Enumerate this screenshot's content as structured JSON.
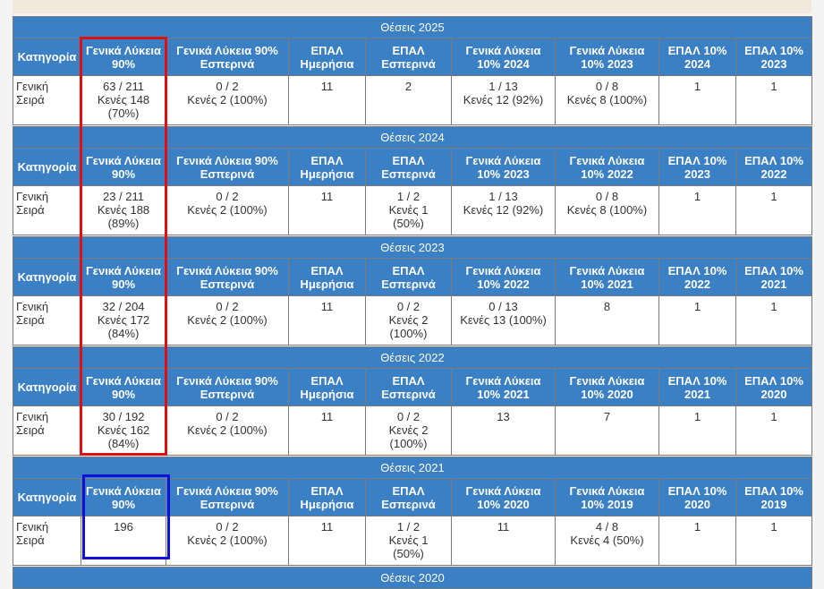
{
  "blocks": [
    {
      "title": "Θέσεις 2025",
      "headers": [
        "Κατηγορία",
        "Γενικά Λύκεια 90%",
        "Γενικά Λύκεια 90% Εσπερινά",
        "ΕΠΑΛ Ημερήσια",
        "ΕΠΑΛ Εσπερινά",
        "Γενικά Λύκεια 10% 2024",
        "Γενικά Λύκεια 10% 2023",
        "ΕΠΑΛ 10% 2024",
        "ΕΠΑΛ 10% 2023"
      ],
      "cells": [
        [
          "Γενική",
          "Σειρά"
        ],
        [
          "63 / 211",
          "Κενές 148",
          "(70%)"
        ],
        [
          "0 / 2",
          "Κενές 2 (100%)"
        ],
        [
          "11"
        ],
        [
          "2"
        ],
        [
          "1 / 13",
          "Κενές 12 (92%)"
        ],
        [
          "0 / 8",
          "Κενές 8 (100%)"
        ],
        [
          "1"
        ],
        [
          "1"
        ]
      ]
    },
    {
      "title": "Θέσεις 2024",
      "headers": [
        "Κατηγορία",
        "Γενικά Λύκεια 90%",
        "Γενικά Λύκεια 90% Εσπερινά",
        "ΕΠΑΛ Ημερήσια",
        "ΕΠΑΛ Εσπερινά",
        "Γενικά Λύκεια 10% 2023",
        "Γενικά Λύκεια 10% 2022",
        "ΕΠΑΛ 10% 2023",
        "ΕΠΑΛ 10% 2022"
      ],
      "cells": [
        [
          "Γενική",
          "Σειρά"
        ],
        [
          "23 / 211",
          "Κενές 188",
          "(89%)"
        ],
        [
          "0 / 2",
          "Κενές 2 (100%)"
        ],
        [
          "11"
        ],
        [
          "1 / 2",
          "Κενές 1",
          "(50%)"
        ],
        [
          "1 / 13",
          "Κενές 12 (92%)"
        ],
        [
          "0 / 8",
          "Κενές 8 (100%)"
        ],
        [
          "1"
        ],
        [
          "1"
        ]
      ]
    },
    {
      "title": "Θέσεις 2023",
      "headers": [
        "Κατηγορία",
        "Γενικά Λύκεια 90%",
        "Γενικά Λύκεια 90% Εσπερινά",
        "ΕΠΑΛ Ημερήσια",
        "ΕΠΑΛ Εσπερινά",
        "Γενικά Λύκεια 10% 2022",
        "Γενικά Λύκεια 10% 2021",
        "ΕΠΑΛ 10% 2022",
        "ΕΠΑΛ 10% 2021"
      ],
      "cells": [
        [
          "Γενική",
          "Σειρά"
        ],
        [
          "32 / 204",
          "Κενές 172",
          "(84%)"
        ],
        [
          "0 / 2",
          "Κενές 2 (100%)"
        ],
        [
          "11"
        ],
        [
          "0 / 2",
          "Κενές 2",
          "(100%)"
        ],
        [
          "0 / 13",
          "Κενές 13 (100%)"
        ],
        [
          "8"
        ],
        [
          "1"
        ],
        [
          "1"
        ]
      ]
    },
    {
      "title": "Θέσεις 2022",
      "headers": [
        "Κατηγορία",
        "Γενικά Λύκεια 90%",
        "Γενικά Λύκεια 90% Εσπερινά",
        "ΕΠΑΛ Ημερήσια",
        "ΕΠΑΛ Εσπερινά",
        "Γενικά Λύκεια 10% 2021",
        "Γενικά Λύκεια 10% 2020",
        "ΕΠΑΛ 10% 2021",
        "ΕΠΑΛ 10% 2020"
      ],
      "cells": [
        [
          "Γενική",
          "Σειρά"
        ],
        [
          "30 / 192",
          "Κενές 162",
          "(84%)"
        ],
        [
          "0 / 2",
          "Κενές 2 (100%)"
        ],
        [
          "11"
        ],
        [
          "0 / 2",
          "Κενές 2",
          "(100%)"
        ],
        [
          "13"
        ],
        [
          "7"
        ],
        [
          "1"
        ],
        [
          "1"
        ]
      ]
    },
    {
      "title": "Θέσεις 2021",
      "headers": [
        "Κατηγορία",
        "Γενικά Λύκεια 90%",
        "Γενικά Λύκεια 90% Εσπερινά",
        "ΕΠΑΛ Ημερήσια",
        "ΕΠΑΛ Εσπερινά",
        "Γενικά Λύκεια 10% 2020",
        "Γενικά Λύκεια 10% 2019",
        "ΕΠΑΛ 10% 2020",
        "ΕΠΑΛ 10% 2019"
      ],
      "cells": [
        [
          "Γενική",
          "Σειρά"
        ],
        [
          "196"
        ],
        [
          "0 / 2",
          "Κενές 2 (100%)"
        ],
        [
          "11"
        ],
        [
          "1 / 2",
          "Κενές 1",
          "(50%)"
        ],
        [
          "11"
        ],
        [
          "4 / 8",
          "Κενές 4 (50%)"
        ],
        [
          "1"
        ],
        [
          "1"
        ]
      ]
    },
    {
      "title": "Θέσεις 2020"
    }
  ]
}
